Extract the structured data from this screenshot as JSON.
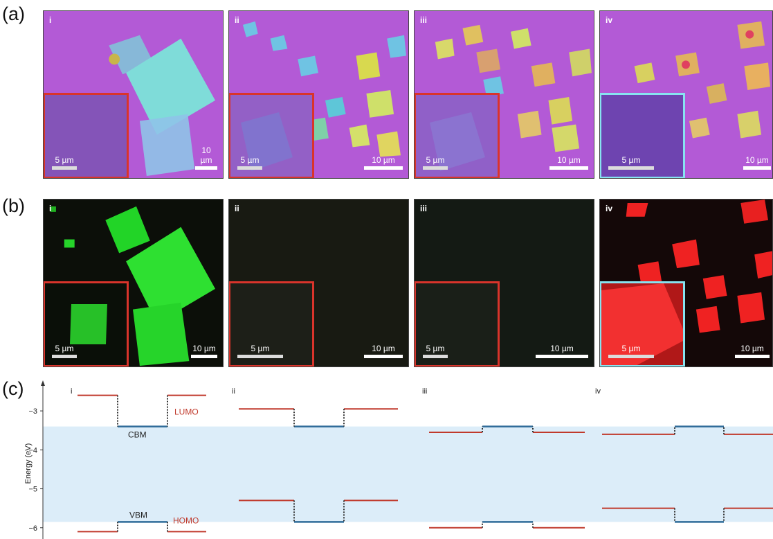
{
  "row_labels": {
    "a": "(a)",
    "b": "(b)",
    "c": "(c)"
  },
  "panel_labels": [
    "i",
    "ii",
    "iii",
    "iv"
  ],
  "scalebars": {
    "large": "10 µm",
    "small": "5 µm"
  },
  "colors": {
    "optical_background": "#b35ad6",
    "pl_green": "#22d427",
    "pl_red": "#ef2222",
    "inset_border_red": "#d9342b",
    "inset_border_cyan": "#87e3f0",
    "homo_lumo_line": "#c0392b",
    "cbm_vbm_line": "#2e6b99",
    "band_gap_fill": "#dcedf9"
  },
  "energy_diagram": {
    "ylabel": "Energy (eV)",
    "yticks": [
      -3,
      -4,
      -5,
      -6
    ],
    "ylim": [
      -6.2,
      -2.5
    ],
    "band_gap": {
      "cbm": -3.4,
      "vbm": -5.85
    },
    "labels": {
      "lumo": "LUMO",
      "homo": "HOMO",
      "cbm": "CBM",
      "vbm": "VBM"
    },
    "panels": [
      {
        "label": "i",
        "lumo": -2.6,
        "homo": -6.1,
        "cbm": -3.4,
        "vbm": -5.85
      },
      {
        "label": "ii",
        "lumo": -2.95,
        "homo": -5.3,
        "cbm": -3.4,
        "vbm": -5.85
      },
      {
        "label": "iii",
        "lumo": -3.55,
        "homo": -6.0,
        "cbm": -3.4,
        "vbm": -5.85
      },
      {
        "label": "iv",
        "lumo": -3.6,
        "homo": -5.5,
        "cbm": -3.4,
        "vbm": -5.85
      }
    ]
  }
}
